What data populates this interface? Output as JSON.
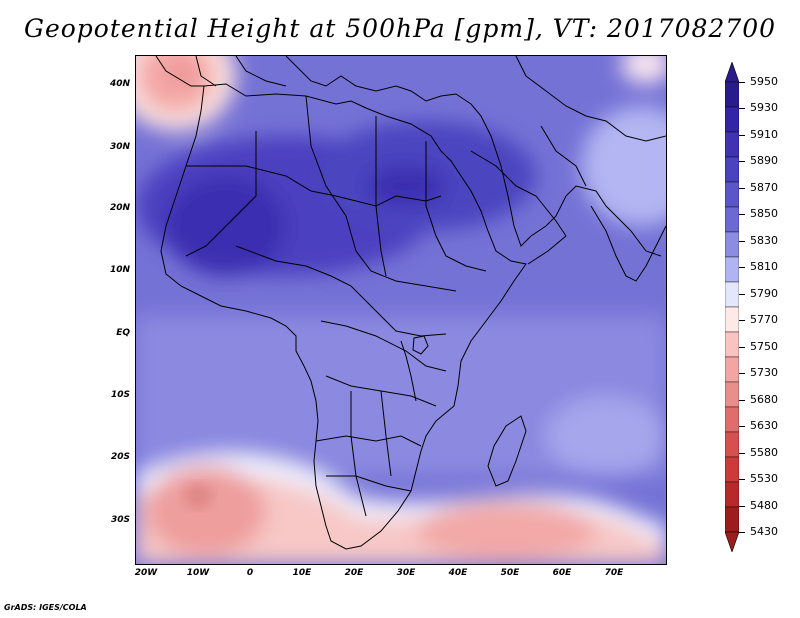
{
  "title": "Geopotential Height at 500hPa [gpm], VT: 2017082700",
  "credit": "GrADS: IGES/COLA",
  "lat_labels": [
    "40N",
    "30N",
    "20N",
    "10N",
    "EQ",
    "10S",
    "20S",
    "30S"
  ],
  "lon_labels": [
    "20W",
    "10W",
    "0",
    "10E",
    "20E",
    "30E",
    "40E",
    "50E",
    "60E",
    "70E"
  ],
  "colorbar": {
    "levels": [
      "5950",
      "5930",
      "5910",
      "5890",
      "5870",
      "5850",
      "5830",
      "5810",
      "5790",
      "5770",
      "5750",
      "5730",
      "5680",
      "5630",
      "5580",
      "5530",
      "5480",
      "5430"
    ],
    "colors": [
      "#2a1b8c",
      "#3424a6",
      "#3f33b4",
      "#4a42bf",
      "#5a55c8",
      "#6c6ad2",
      "#8c8ce2",
      "#b0b4f2",
      "#e4e6fc",
      "#fde9e6",
      "#f9c3bf",
      "#f2a5a2",
      "#ea8e8c",
      "#e06d6d",
      "#d84f50",
      "#cd3a3a",
      "#b82a2a",
      "#9e1c1c"
    ]
  }
}
